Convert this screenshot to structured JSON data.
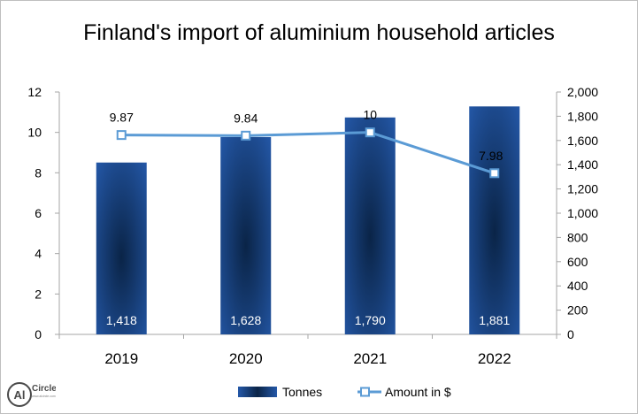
{
  "chart_data": {
    "type": "bar",
    "title": "Finland's import of aluminium household articles",
    "categories": [
      "2019",
      "2020",
      "2021",
      "2022"
    ],
    "series": [
      {
        "name": "Tonnes",
        "type": "bar",
        "axis": "right",
        "values": [
          1418,
          1628,
          1790,
          1881
        ],
        "labels": [
          "1,418",
          "1,628",
          "1,790",
          "1,881"
        ],
        "color": "#1f4e9a"
      },
      {
        "name": "Amount in $",
        "type": "line",
        "axis": "left",
        "values": [
          9.87,
          9.84,
          10,
          7.98
        ],
        "labels": [
          "9.87",
          "9.84",
          "10",
          "7.98"
        ],
        "color": "#5b9bd5"
      }
    ],
    "y_left": {
      "min": 0,
      "max": 12,
      "ticks": [
        "0",
        "2",
        "4",
        "6",
        "8",
        "10",
        "12"
      ]
    },
    "y_right": {
      "min": 0,
      "max": 2000,
      "ticks": [
        "0",
        "200",
        "400",
        "600",
        "800",
        "1,000",
        "1,200",
        "1,400",
        "1,600",
        "1,800",
        "2,000"
      ]
    },
    "grid": false,
    "legend": "bottom"
  },
  "logo": {
    "text_left": "Al",
    "text_right": "Circle",
    "tagline": "www.alcircle.com"
  }
}
